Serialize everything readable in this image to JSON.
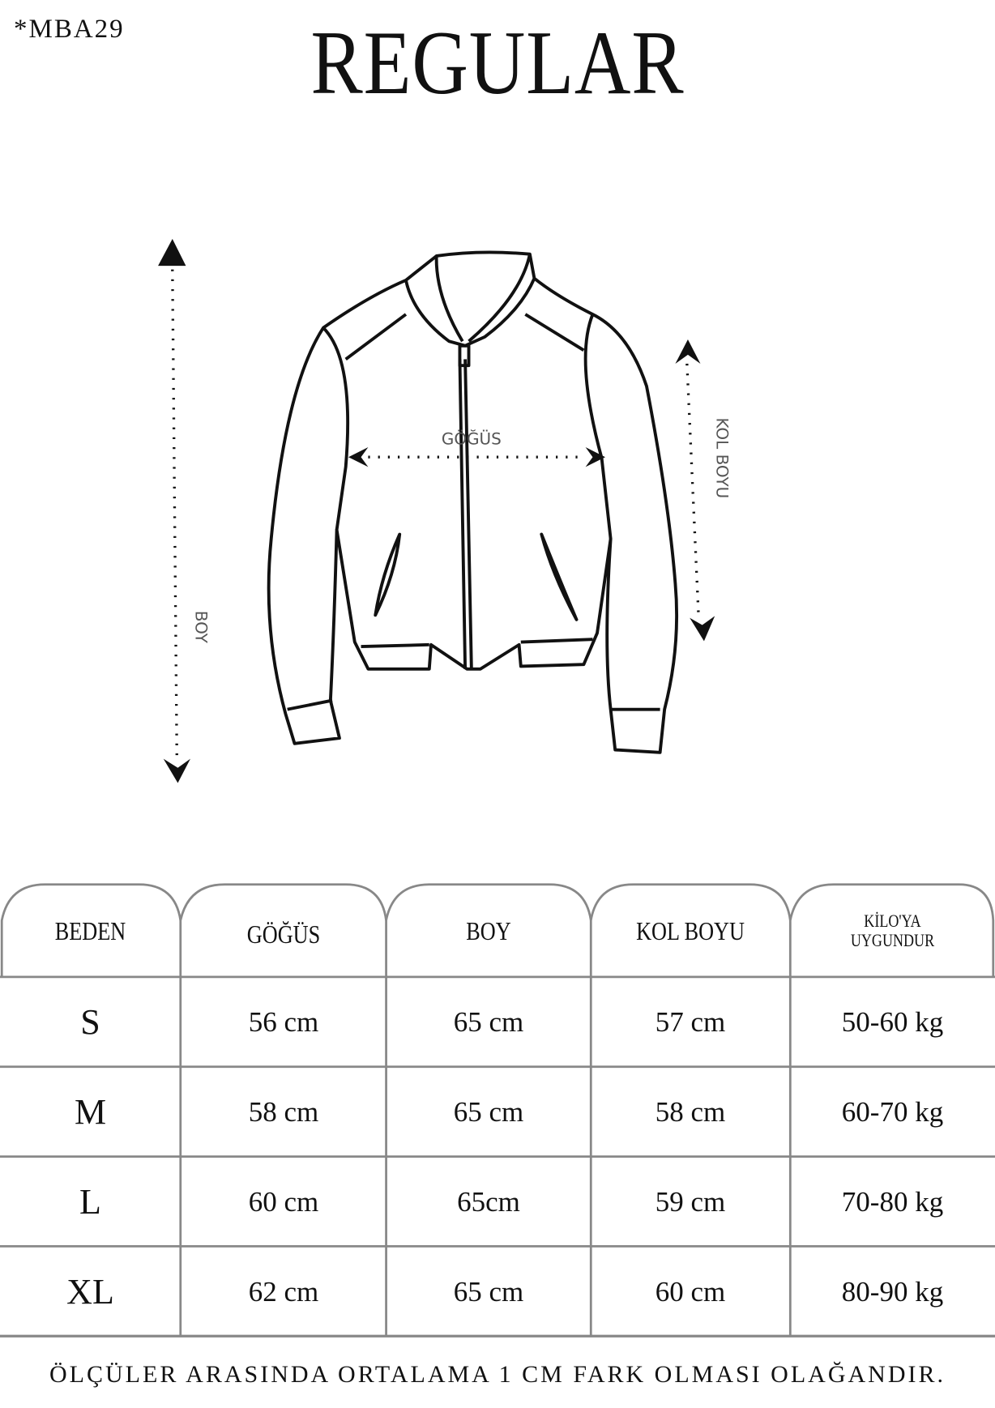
{
  "product_code": "*MBA29",
  "title": "REGULAR",
  "diagram_labels": {
    "chest": "GÖĞÜS",
    "length": "BOY",
    "sleeve": "KOL BOYU"
  },
  "table": {
    "headers": [
      "BEDEN",
      "GÖĞÜS",
      "BOY",
      "KOL BOYU",
      "KİLO'YA UYGUNDUR"
    ],
    "weight_header_lines": [
      "KİLO'YA",
      "UYGUNDUR"
    ],
    "rows": [
      [
        "S",
        "56 cm",
        "65 cm",
        "57  cm",
        "50-60 kg"
      ],
      [
        "M",
        "58 cm",
        "65 cm",
        "58 cm",
        "60-70 kg"
      ],
      [
        "L",
        "60 cm",
        "65cm",
        "59 cm",
        "70-80 kg"
      ],
      [
        "XL",
        "62 cm",
        "65 cm",
        "60 cm",
        "80-90 kg"
      ]
    ]
  },
  "footer_note": "ÖLÇÜLER ARASINDA ORTALAMA 1 CM FARK OLMASI OLAĞANDIR."
}
